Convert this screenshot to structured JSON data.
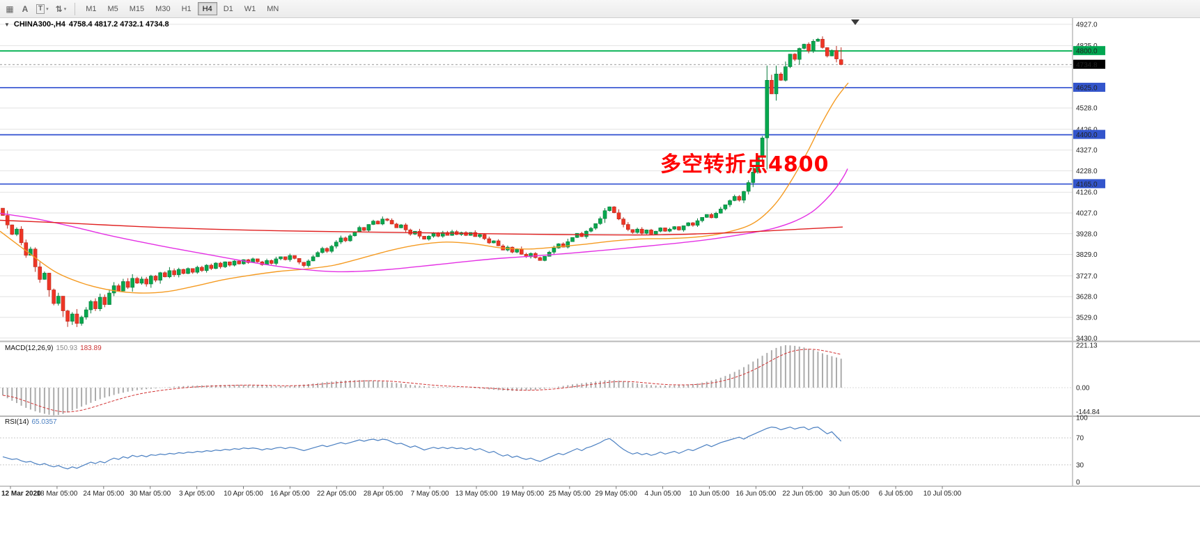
{
  "toolbar": {
    "icons": [
      {
        "name": "chart-window-icon",
        "glyph": "▦",
        "caret": false
      },
      {
        "name": "text-tool-icon",
        "glyph": "A",
        "caret": false
      },
      {
        "name": "template-tool-icon",
        "glyph": "T",
        "caret": true,
        "boxed": true
      },
      {
        "name": "indicators-icon",
        "glyph": "⇅",
        "caret": true
      }
    ],
    "timeframes": [
      "M1",
      "M5",
      "M15",
      "M30",
      "H1",
      "H4",
      "D1",
      "W1",
      "MN"
    ],
    "active_timeframe": "H4"
  },
  "chart": {
    "title_symbol": "CHINA300-,H4",
    "title_ohlc": "4758.4 4817.2 4732.1 4734.8",
    "current_price": 4734.8,
    "annotation": {
      "text": "多空转折点4800",
      "color": "#ff0000"
    }
  },
  "colors": {
    "candle_up": "#07a84e",
    "candle_up_border": "#067a3a",
    "candle_down": "#ee3626",
    "candle_down_border": "#b8281c",
    "ma_slow": "#e02020",
    "ma_mid": "#e431e4",
    "ma_fast": "#f59b22",
    "macd_hist": "#ababab",
    "macd_signal": "#d23333",
    "rsi_line": "#4a7fc1",
    "hline_blue": "#2f4fd0",
    "hline_green": "#00b050",
    "badge_blue": "#3355cc",
    "badge_green": "#00a651",
    "badge_black": "#000000",
    "grid": "#e2e2e2"
  },
  "price_axis": {
    "grid_prices": [
      4927,
      4825,
      4724,
      4625,
      4528,
      4426,
      4327,
      4228,
      4126,
      4027,
      3928,
      3829,
      3727,
      3628,
      3529,
      3430
    ],
    "labels": [
      4927,
      4825,
      4528,
      4426,
      4327,
      4228,
      4126,
      4027,
      3928,
      3829,
      3727,
      3628,
      3529,
      3430
    ],
    "badges": [
      {
        "text": "4800.0",
        "price": 4800,
        "bg": "#00a651"
      },
      {
        "text": "4734.8",
        "price": 4734.8,
        "bg": "#000000"
      },
      {
        "text": "4625.0",
        "price": 4625,
        "bg": "#3355cc"
      },
      {
        "text": "4400.0",
        "price": 4400,
        "bg": "#3355cc"
      },
      {
        "text": "4165.0",
        "price": 4165,
        "bg": "#3355cc"
      }
    ]
  },
  "hlines": [
    {
      "price": 4800,
      "color": "#00b050",
      "width": 1.8
    },
    {
      "price": 4625,
      "color": "#2f4fd0",
      "width": 1.6
    },
    {
      "price": 4400,
      "color": "#2f4fd0",
      "width": 1.8
    },
    {
      "price": 4165,
      "color": "#2f4fd0",
      "width": 1.6
    }
  ],
  "chart_data": {
    "type": "candlestick",
    "symbol": "CHINA300-",
    "timeframe": "H4",
    "price_range": [
      3416,
      4950
    ],
    "first_open": 4050,
    "current_bar": {
      "open": 4758.4,
      "high": 4817.2,
      "low": 4732.1,
      "close": 4734.8
    },
    "closes": [
      4015,
      3970,
      3925,
      3950,
      3885,
      3825,
      3855,
      3770,
      3710,
      3740,
      3660,
      3595,
      3630,
      3560,
      3510,
      3545,
      3500,
      3530,
      3565,
      3605,
      3570,
      3625,
      3590,
      3645,
      3680,
      3655,
      3700,
      3672,
      3715,
      3692,
      3712,
      3688,
      3726,
      3706,
      3742,
      3722,
      3752,
      3732,
      3758,
      3738,
      3762,
      3744,
      3768,
      3752,
      3778,
      3762,
      3788,
      3770,
      3794,
      3778,
      3798,
      3784,
      3804,
      3790,
      3808,
      3794,
      3780,
      3800,
      3786,
      3808,
      3818,
      3804,
      3824,
      3810,
      3792,
      3776,
      3798,
      3818,
      3838,
      3858,
      3844,
      3868,
      3888,
      3908,
      3894,
      3918,
      3938,
      3958,
      3944,
      3972,
      3988,
      3974,
      3998,
      3992,
      3974,
      3956,
      3970,
      3946,
      3926,
      3940,
      3916,
      3902,
      3916,
      3930,
      3916,
      3934,
      3920,
      3938,
      3924,
      3934,
      3920,
      3934,
      3914,
      3924,
      3904,
      3884,
      3894,
      3870,
      3850,
      3864,
      3840,
      3854,
      3830,
      3818,
      3834,
      3814,
      3800,
      3820,
      3840,
      3860,
      3880,
      3864,
      3890,
      3910,
      3930,
      3914,
      3940,
      3954,
      3976,
      4000,
      4038,
      4056,
      4028,
      3998,
      3972,
      3948,
      3934,
      3950,
      3930,
      3946,
      3926,
      3940,
      3956,
      3940,
      3950,
      3962,
      3946,
      3966,
      3980,
      3968,
      3990,
      4006,
      4020,
      4004,
      4026,
      4046,
      4066,
      4086,
      4106,
      4088,
      4130,
      4172,
      4222,
      4292,
      4385,
      4660,
      4595,
      4690,
      4660,
      4725,
      4785,
      4760,
      4812,
      4832,
      4800,
      4846,
      4856,
      4816,
      4776,
      4802,
      4762,
      4734.8
    ],
    "moving_averages": [
      {
        "name": "ma-fast-orange",
        "color": "#f59b22",
        "points": [
          [
            0,
            3940
          ],
          [
            40,
            3840
          ],
          [
            80,
            3745
          ],
          [
            120,
            3690
          ],
          [
            160,
            3658
          ],
          [
            200,
            3645
          ],
          [
            240,
            3652
          ],
          [
            280,
            3678
          ],
          [
            320,
            3708
          ],
          [
            360,
            3730
          ],
          [
            400,
            3748
          ],
          [
            440,
            3760
          ],
          [
            480,
            3778
          ],
          [
            520,
            3812
          ],
          [
            560,
            3848
          ],
          [
            600,
            3875
          ],
          [
            640,
            3888
          ],
          [
            680,
            3880
          ],
          [
            720,
            3860
          ],
          [
            760,
            3855
          ],
          [
            800,
            3865
          ],
          [
            840,
            3878
          ],
          [
            880,
            3893
          ],
          [
            920,
            3903
          ],
          [
            960,
            3905
          ],
          [
            1000,
            3912
          ],
          [
            1040,
            3932
          ],
          [
            1080,
            3975
          ],
          [
            1110,
            4058
          ],
          [
            1135,
            4175
          ],
          [
            1160,
            4322
          ],
          [
            1180,
            4455
          ],
          [
            1200,
            4570
          ],
          [
            1218,
            4648
          ]
        ]
      },
      {
        "name": "ma-mid-magenta",
        "color": "#e431e4",
        "points": [
          [
            0,
            4025
          ],
          [
            50,
            4000
          ],
          [
            100,
            3965
          ],
          [
            150,
            3925
          ],
          [
            200,
            3890
          ],
          [
            250,
            3858
          ],
          [
            300,
            3828
          ],
          [
            350,
            3798
          ],
          [
            400,
            3772
          ],
          [
            440,
            3756
          ],
          [
            480,
            3747
          ],
          [
            520,
            3749
          ],
          [
            560,
            3758
          ],
          [
            600,
            3771
          ],
          [
            640,
            3785
          ],
          [
            680,
            3799
          ],
          [
            720,
            3811
          ],
          [
            760,
            3820
          ],
          [
            800,
            3830
          ],
          [
            840,
            3841
          ],
          [
            880,
            3853
          ],
          [
            920,
            3866
          ],
          [
            960,
            3879
          ],
          [
            1000,
            3893
          ],
          [
            1040,
            3911
          ],
          [
            1080,
            3933
          ],
          [
            1110,
            3953
          ],
          [
            1140,
            3986
          ],
          [
            1165,
            4030
          ],
          [
            1185,
            4088
          ],
          [
            1200,
            4145
          ],
          [
            1212,
            4205
          ],
          [
            1217,
            4238
          ]
        ]
      },
      {
        "name": "ma-slow-red",
        "color": "#e02020",
        "points": [
          [
            0,
            3992
          ],
          [
            100,
            3978
          ],
          [
            200,
            3962
          ],
          [
            300,
            3950
          ],
          [
            400,
            3942
          ],
          [
            500,
            3937
          ],
          [
            600,
            3933
          ],
          [
            700,
            3928
          ],
          [
            800,
            3924
          ],
          [
            900,
            3922
          ],
          [
            950,
            3923
          ],
          [
            1000,
            3927
          ],
          [
            1050,
            3933
          ],
          [
            1100,
            3941
          ],
          [
            1150,
            3950
          ],
          [
            1210,
            3960
          ]
        ]
      }
    ],
    "macd": {
      "label": "MACD(12,26,9)",
      "value_main": "150.93",
      "value_signal": "183.89",
      "axis": [
        {
          "t": "221.13",
          "v": 221.13
        },
        {
          "t": "0.00",
          "v": 0
        },
        {
          "t": "-144.84",
          "v": -144.84
        }
      ],
      "values": [
        -40,
        -55,
        -68,
        -80,
        -94,
        -105,
        -114,
        -123,
        -130,
        -136,
        -141,
        -144,
        -142,
        -137,
        -129,
        -119,
        -110,
        -99,
        -89,
        -79,
        -69,
        -60,
        -52,
        -45,
        -38,
        -31,
        -26,
        -21,
        -17,
        -13,
        -10,
        -8,
        -6,
        -4,
        -1,
        1,
        3,
        5,
        7,
        8,
        9,
        10,
        11,
        12,
        12,
        13,
        13,
        14,
        14,
        15,
        15,
        15,
        14,
        14,
        13,
        12,
        11,
        10,
        9,
        8,
        8,
        9,
        10,
        12,
        14,
        16,
        18,
        21,
        24,
        27,
        30,
        32,
        34,
        36,
        37,
        38,
        39,
        40,
        40,
        39,
        37,
        35,
        33,
        30,
        27,
        24,
        21,
        18,
        15,
        12,
        10,
        8,
        6,
        5,
        4,
        3,
        3,
        2,
        2,
        1,
        0,
        -1,
        -3,
        -5,
        -7,
        -9,
        -11,
        -13,
        -15,
        -16,
        -17,
        -17,
        -16,
        -15,
        -13,
        -11,
        -8,
        -5,
        -2,
        1,
        5,
        9,
        13,
        17,
        20,
        23,
        26,
        29,
        32,
        35,
        38,
        40,
        39,
        37,
        34,
        30,
        26,
        22,
        19,
        16,
        13,
        11,
        10,
        10,
        11,
        12,
        13,
        15,
        17,
        19,
        22,
        26,
        31,
        37,
        44,
        52,
        61,
        71,
        82,
        94,
        107,
        121,
        136,
        151,
        166,
        181,
        195,
        207,
        216,
        221,
        220,
        218,
        214,
        209,
        203,
        196,
        188,
        179,
        171,
        164,
        157,
        150.9
      ]
    },
    "rsi": {
      "label": "RSI(14)",
      "value": "65.0357",
      "levels": [
        70,
        30
      ],
      "axis": [
        {
          "t": "100",
          "v": 100
        },
        {
          "t": "70",
          "v": 70
        },
        {
          "t": "30",
          "v": 30
        },
        {
          "t": "0",
          "v": 0
        }
      ],
      "values": [
        42,
        40,
        38,
        39,
        36,
        34,
        35,
        32,
        30,
        32,
        29,
        27,
        29,
        26,
        24,
        27,
        25,
        28,
        31,
        34,
        32,
        35,
        33,
        37,
        40,
        38,
        42,
        40,
        44,
        42,
        44,
        42,
        45,
        44,
        46,
        45,
        47,
        46,
        48,
        47,
        49,
        48,
        50,
        49,
        51,
        50,
        52,
        51,
        53,
        52,
        54,
        53,
        55,
        54,
        55,
        54,
        52,
        54,
        53,
        55,
        56,
        54,
        56,
        55,
        53,
        51,
        53,
        55,
        57,
        59,
        57,
        59,
        61,
        63,
        61,
        63,
        65,
        67,
        65,
        67,
        68,
        66,
        68,
        67,
        64,
        61,
        62,
        59,
        56,
        58,
        55,
        52,
        54,
        56,
        54,
        56,
        54,
        56,
        54,
        55,
        53,
        55,
        52,
        54,
        51,
        48,
        50,
        46,
        43,
        45,
        41,
        43,
        40,
        38,
        40,
        37,
        35,
        38,
        41,
        44,
        47,
        45,
        48,
        51,
        54,
        51,
        55,
        57,
        60,
        63,
        67,
        69,
        64,
        58,
        53,
        49,
        46,
        48,
        45,
        47,
        44,
        46,
        49,
        46,
        48,
        50,
        47,
        50,
        53,
        51,
        54,
        57,
        60,
        57,
        60,
        63,
        65,
        67,
        69,
        71,
        68,
        72,
        75,
        78,
        81,
        84,
        86,
        85,
        82,
        84,
        86,
        83,
        85,
        86,
        82,
        85,
        86,
        81,
        76,
        79,
        72,
        65.04
      ]
    },
    "time_labels": [
      "12 Mar 2020",
      "18 Mar 05:00",
      "24 Mar 05:00",
      "30 Mar 05:00",
      "3 Apr 05:00",
      "10 Apr 05:00",
      "16 Apr 05:00",
      "22 Apr 05:00",
      "28 Apr 05:00",
      "7 May 05:00",
      "13 May 05:00",
      "19 May 05:00",
      "25 May 05:00",
      "29 May 05:00",
      "4 Jun 05:00",
      "10 Jun 05:00",
      "16 Jun 05:00",
      "22 Jun 05:00",
      "30 Jun 05:00",
      "6 Jul 05:00",
      "10 Jul 05:00"
    ]
  }
}
